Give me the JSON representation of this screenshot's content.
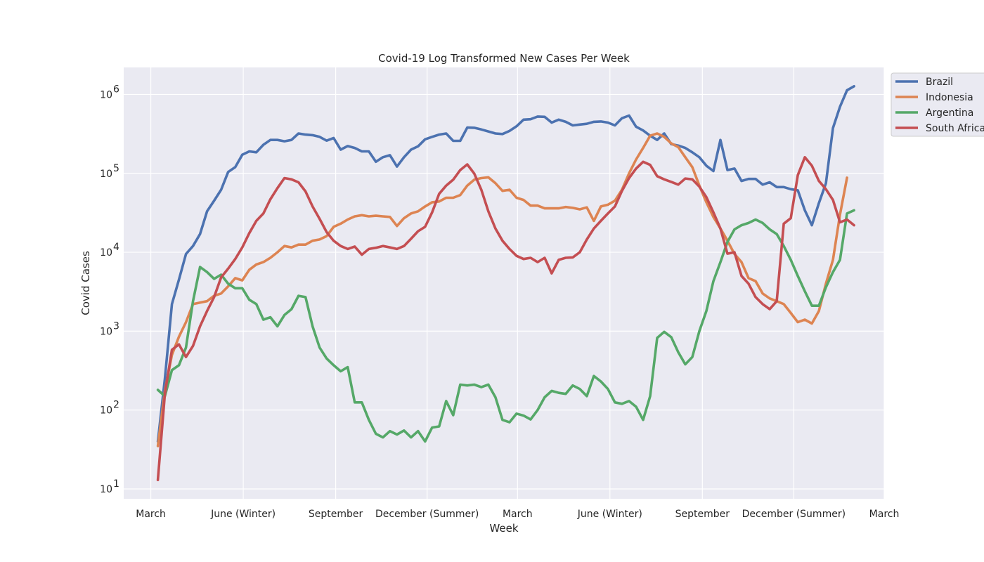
{
  "chart_data": {
    "type": "line",
    "title": "Covid-19 Log Transformed New Cases Per Week",
    "xlabel": "Week",
    "ylabel": "Covid Cases",
    "yscale": "log",
    "ylim": [
      7.5,
      2200000
    ],
    "xlim": [
      "2020-02-03",
      "2022-03-01"
    ],
    "grid": true,
    "legend_position": "upper right, outside",
    "x_ticks": [
      {
        "date": "2020-03-01",
        "label": "March"
      },
      {
        "date": "2020-06-01",
        "label": "June (Winter)"
      },
      {
        "date": "2020-09-01",
        "label": "September"
      },
      {
        "date": "2020-12-01",
        "label": "December (Summer)"
      },
      {
        "date": "2021-03-01",
        "label": "March"
      },
      {
        "date": "2021-06-01",
        "label": "June (Winter)"
      },
      {
        "date": "2021-09-01",
        "label": "September"
      },
      {
        "date": "2021-12-01",
        "label": "December (Summer)"
      },
      {
        "date": "2022-03-01",
        "label": "March"
      }
    ],
    "y_ticks": [
      {
        "value": 10,
        "base": "10",
        "exp": "1"
      },
      {
        "value": 100,
        "base": "10",
        "exp": "2"
      },
      {
        "value": 1000,
        "base": "10",
        "exp": "3"
      },
      {
        "value": 10000,
        "base": "10",
        "exp": "4"
      },
      {
        "value": 100000,
        "base": "10",
        "exp": "5"
      },
      {
        "value": 1000000,
        "base": "10",
        "exp": "6"
      }
    ],
    "x_start": "2020-03-08",
    "x_step_days": 7,
    "series": [
      {
        "name": "Brazil",
        "color": "#4c72b0",
        "values": [
          40,
          250,
          2200,
          4500,
          9500,
          12000,
          17000,
          33000,
          45000,
          62000,
          104000,
          120000,
          172000,
          190000,
          185000,
          230000,
          265000,
          265000,
          255000,
          265000,
          320000,
          310000,
          305000,
          290000,
          260000,
          280000,
          200000,
          222000,
          210000,
          190000,
          190000,
          140000,
          160000,
          170000,
          122000,
          160000,
          200000,
          220000,
          270000,
          290000,
          310000,
          320000,
          258000,
          258000,
          380000,
          378000,
          360000,
          340000,
          320000,
          315000,
          345000,
          395000,
          480000,
          485000,
          525000,
          520000,
          440000,
          480000,
          450000,
          405000,
          415000,
          425000,
          450000,
          455000,
          440000,
          405000,
          500000,
          540000,
          390000,
          350000,
          300000,
          265000,
          320000,
          235000,
          225000,
          210000,
          185000,
          160000,
          125000,
          107000,
          265000,
          110000,
          115000,
          80000,
          85000,
          85000,
          72000,
          77000,
          67000,
          67000,
          63000,
          61000,
          34000,
          22000,
          42000,
          75000,
          375000,
          700000,
          1130000,
          1270000
        ]
      },
      {
        "name": "Indonesia",
        "color": "#dd8452",
        "values": [
          35,
          175,
          500,
          850,
          1300,
          2200,
          2300,
          2400,
          2800,
          3000,
          3700,
          4700,
          4400,
          6000,
          7000,
          7500,
          8500,
          10000,
          12000,
          11500,
          12500,
          12500,
          14000,
          14500,
          16000,
          21000,
          23000,
          26000,
          28500,
          29500,
          28500,
          29000,
          28500,
          28000,
          21500,
          27000,
          31000,
          33000,
          38000,
          43000,
          44000,
          49000,
          49000,
          53000,
          70000,
          83000,
          87000,
          89000,
          75000,
          60000,
          62000,
          49000,
          46000,
          39000,
          39000,
          36000,
          36000,
          36000,
          37500,
          36500,
          35000,
          37000,
          25000,
          38000,
          40000,
          45000,
          62000,
          100000,
          150000,
          210000,
          300000,
          320000,
          290000,
          240000,
          215000,
          160000,
          120000,
          70000,
          43000,
          28000,
          20000,
          14000,
          9500,
          7500,
          4700,
          4300,
          3000,
          2600,
          2400,
          2200,
          1700,
          1300,
          1400,
          1250,
          1800,
          4000,
          8000,
          30000,
          88000
        ]
      },
      {
        "name": "Argentina",
        "color": "#55a868",
        "values": [
          180,
          150,
          320,
          370,
          620,
          2400,
          6500,
          5600,
          4600,
          5200,
          4000,
          3500,
          3500,
          2500,
          2200,
          1400,
          1500,
          1150,
          1600,
          1900,
          2800,
          2700,
          1150,
          620,
          450,
          370,
          310,
          350,
          125,
          125,
          75,
          50,
          45,
          54,
          49,
          55,
          45,
          54,
          40,
          60,
          62,
          130,
          86,
          210,
          205,
          210,
          195,
          210,
          145,
          75,
          70,
          90,
          85,
          76,
          100,
          145,
          175,
          165,
          160,
          205,
          185,
          150,
          270,
          230,
          185,
          125,
          120,
          130,
          110,
          75,
          150,
          820,
          980,
          840,
          540,
          380,
          470,
          1000,
          1800,
          4300,
          7500,
          13500,
          19500,
          22000,
          23500,
          26000,
          23500,
          19500,
          17000,
          12000,
          8000,
          5000,
          3200,
          2100,
          2100,
          3600,
          5600,
          8000,
          31000,
          34000
        ]
      },
      {
        "name": "South Africa",
        "color": "#c44e52",
        "values": [
          13,
          160,
          580,
          680,
          470,
          650,
          1150,
          1800,
          2700,
          4800,
          6200,
          8200,
          11500,
          17500,
          25000,
          31000,
          47000,
          65000,
          87000,
          84000,
          77000,
          59000,
          38000,
          26500,
          18000,
          14000,
          12000,
          11000,
          11800,
          9300,
          11000,
          11400,
          12000,
          11500,
          11000,
          12000,
          14800,
          18500,
          21000,
          32000,
          55000,
          70000,
          83000,
          110000,
          130000,
          99000,
          62000,
          33000,
          20000,
          14000,
          11000,
          9000,
          8200,
          8500,
          7500,
          8500,
          5400,
          8000,
          8500,
          8600,
          10000,
          14500,
          20000,
          25000,
          31000,
          38000,
          60000,
          87000,
          115000,
          140000,
          128000,
          92000,
          84000,
          78000,
          72000,
          86000,
          84000,
          68000,
          50000,
          32000,
          20000,
          9600,
          10000,
          5000,
          4000,
          2700,
          2200,
          1900,
          2400,
          23000,
          27000,
          95000,
          160000,
          125000,
          80000,
          63000,
          46000,
          24000,
          26000,
          22000
        ]
      }
    ]
  }
}
